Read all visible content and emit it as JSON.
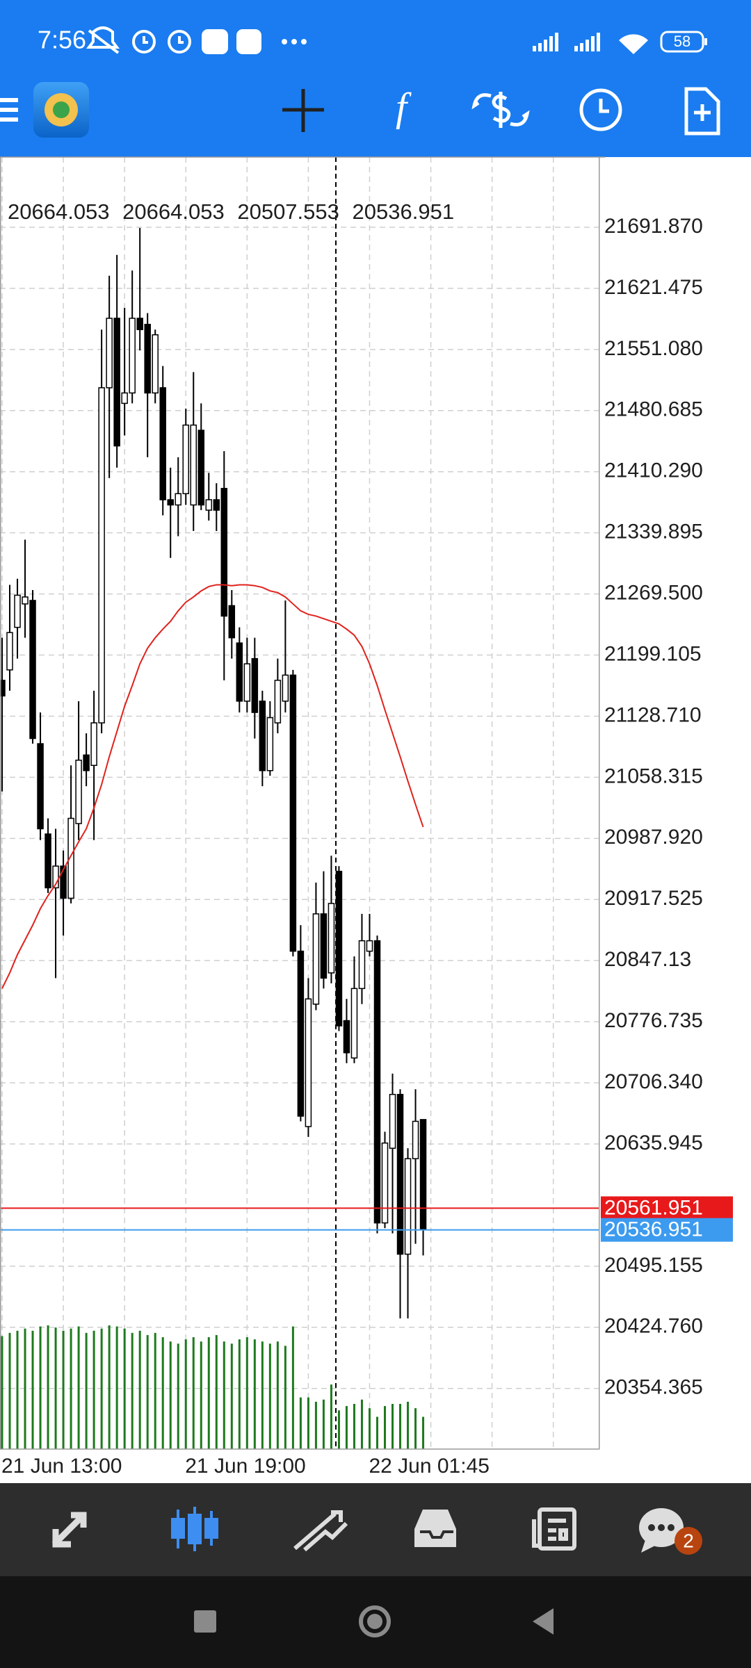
{
  "status_bar": {
    "time": "7:56",
    "battery": "58"
  },
  "bottom_nav": {
    "badge": "2"
  },
  "chart_data": {
    "type": "candlestick",
    "categories": [
      "21 Jun 13:00",
      null,
      null,
      null,
      null,
      null,
      null,
      null,
      null,
      null,
      null,
      null,
      null,
      null,
      null,
      null,
      null,
      null,
      null,
      null,
      null,
      null,
      null,
      null,
      "21 Jun 19:00",
      null,
      null,
      null,
      null,
      null,
      null,
      null,
      null,
      null,
      null,
      null,
      null,
      null,
      null,
      null,
      null,
      null,
      null,
      null,
      null,
      null,
      null,
      null,
      "22 Jun 01:45",
      null,
      null,
      null,
      null,
      null,
      null,
      null
    ],
    "open": [
      21170,
      21182,
      21231,
      21258,
      21262,
      21097,
      20993,
      20931,
      20956,
      20919,
      21005,
      21084,
      21072,
      21121,
      21507,
      21587,
      21489,
      21501,
      21587,
      21580,
      21501,
      21507,
      21378,
      21372,
      21385,
      21372,
      21458,
      21366,
      21378,
      21391,
      21256,
      21213,
      21146,
      21195,
      21146,
      21066,
      21121,
      21146,
      21176,
      20858,
      20656,
      20797,
      20901,
      20833,
      20950,
      20778,
      20735,
      20815,
      20858,
      20870,
      20545,
      20631,
      20693,
      20509,
      20619,
      20664.053
    ],
    "high": [
      21219,
      21280,
      21287,
      21332,
      21274,
      21133,
      21011,
      20999,
      20974,
      21072,
      21146,
      21109,
      21158,
      21574,
      21636,
      21660,
      21599,
      21642,
      21691,
      21593,
      21574,
      21532,
      21415,
      21427,
      21483,
      21525,
      21489,
      21409,
      21397,
      21434,
      21274,
      21231,
      21219,
      21219,
      21158,
      21146,
      21195,
      21262,
      21182,
      20888,
      20827,
      20937,
      20950,
      20968,
      20956,
      20803,
      20852,
      20901,
      20901,
      20876,
      20650,
      20717,
      20699,
      20631,
      20699,
      20664.053
    ],
    "low": [
      21042,
      21158,
      21195,
      21219,
      21097,
      20986,
      20925,
      20827,
      20876,
      20913,
      20986,
      21048,
      20986,
      21109,
      21403,
      21415,
      21452,
      21489,
      21550,
      21427,
      21489,
      21360,
      21311,
      21336,
      21372,
      21342,
      21366,
      21354,
      21342,
      21170,
      21195,
      21133,
      21133,
      21103,
      21048,
      21060,
      21109,
      21133,
      20852,
      20662,
      20644,
      20790,
      20815,
      20821,
      20766,
      20729,
      20729,
      20797,
      20852,
      20533,
      20539,
      20533,
      20435,
      20435,
      20521,
      20507.553
    ],
    "close": [
      21152,
      21225,
      21268,
      21266,
      21103,
      20999,
      20931,
      20956,
      20919,
      21011,
      21078,
      21066,
      21121,
      21507,
      21587,
      21440,
      21501,
      21587,
      21574,
      21501,
      21568,
      21378,
      21372,
      21385,
      21464,
      21464,
      21372,
      21378,
      21366,
      21244,
      21219,
      21146,
      21189,
      21133,
      21066,
      21127,
      21170,
      21176,
      20858,
      20668,
      20803,
      20901,
      20827,
      20913,
      20772,
      20741,
      20815,
      20870,
      20870,
      20545,
      20637,
      20693,
      20509,
      20619,
      20662,
      20536.951
    ],
    "volumes": [
      105,
      108,
      110,
      112,
      110,
      114,
      115,
      113,
      110,
      112,
      114,
      108,
      110,
      112,
      115,
      114,
      112,
      108,
      110,
      106,
      108,
      104,
      100,
      98,
      102,
      104,
      100,
      104,
      106,
      100,
      98,
      102,
      104,
      102,
      100,
      98,
      100,
      96,
      114,
      48,
      48,
      44,
      46,
      60,
      36,
      40,
      42,
      46,
      38,
      30,
      40,
      42,
      42,
      44,
      38,
      30
    ],
    "volume_color": "#1d7a1d",
    "moving_average": {
      "color": "#e0221c",
      "values": [
        20815,
        20833,
        20854,
        20871,
        20888,
        20907,
        20922,
        20935,
        20952,
        20968,
        20984,
        20999,
        21023,
        21050,
        21082,
        21111,
        21140,
        21164,
        21189,
        21207,
        21219,
        21229,
        21238,
        21250,
        21260,
        21266,
        21273,
        21278,
        21280,
        21280,
        21279,
        21280,
        21280,
        21279,
        21277,
        21273,
        21271,
        21266,
        21258,
        21250,
        21246,
        21244,
        21241,
        21238,
        21235,
        21229,
        21222,
        21209,
        21189,
        21164,
        21136,
        21109,
        21082,
        21054,
        21027,
        21001
      ]
    },
    "price_lines": [
      {
        "value": 20561.951,
        "color": "#e8191b"
      },
      {
        "value": 20536.951,
        "color": "#3d9bef"
      }
    ],
    "ylim": [
      20284.5,
      21772.7
    ],
    "yticks": [
      {
        "value": 21691.87,
        "label": "21691.870"
      },
      21621.475,
      {
        "value": 21551.08,
        "label": "21551.080"
      },
      21480.685,
      {
        "value": 21410.29,
        "label": "21410.290"
      },
      21339.895,
      {
        "value": 21269.5,
        "label": "21269.500"
      },
      21199.105,
      {
        "value": 21128.71,
        "label": "21128.710"
      },
      21058.315,
      {
        "value": 20987.92,
        "label": "20987.920"
      },
      20917.525,
      20847.13,
      20776.735,
      {
        "value": 20706.34,
        "label": "20706.340"
      },
      20635.945,
      20495.155,
      {
        "value": 20424.76,
        "label": "20424.760"
      },
      20354.365
    ],
    "grid": true
  }
}
